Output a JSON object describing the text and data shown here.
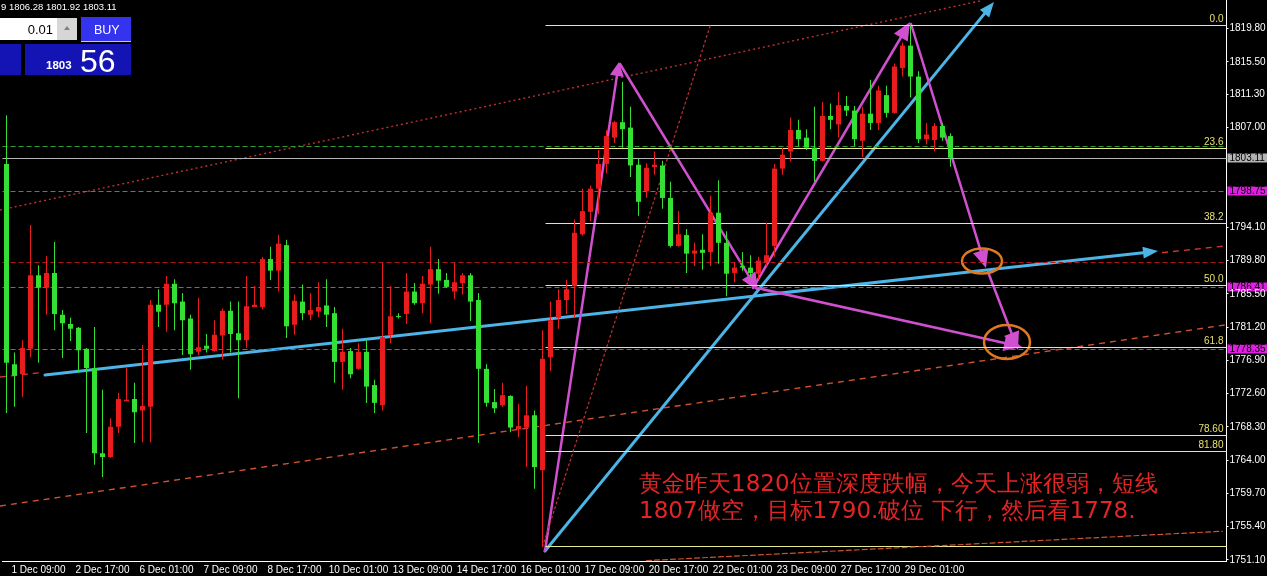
{
  "chart_data": {
    "type": "candlestick",
    "categories": [
      null,
      null,
      null,
      null,
      "1 Dec 09:00",
      null,
      null,
      null,
      null,
      null,
      null,
      null,
      "2 Dec 17:00",
      null,
      null,
      null,
      null,
      null,
      null,
      null,
      "6 Dec 01:00",
      null,
      null,
      null,
      null,
      null,
      null,
      null,
      "7 Dec 09:00",
      null,
      null,
      null,
      null,
      null,
      null,
      null,
      "8 Dec 17:00",
      null,
      null,
      null,
      null,
      null,
      null,
      null,
      "10 Dec 01:00",
      null,
      null,
      null,
      null,
      null,
      null,
      null,
      "13 Dec 09:00",
      null,
      null,
      null,
      null,
      null,
      null,
      null,
      "14 Dec 17:00",
      null,
      null,
      null,
      null,
      null,
      null,
      null,
      "16 Dec 01:00",
      null,
      null,
      null,
      null,
      null,
      null,
      null,
      "17 Dec 09:00",
      null,
      null,
      null,
      null,
      null,
      null,
      null,
      "20 Dec 17:00",
      null,
      null,
      null,
      null,
      null,
      null,
      null,
      "22 Dec 01:00",
      null,
      null,
      null,
      null,
      null,
      null,
      null,
      "23 Dec 09:00",
      null,
      null,
      null,
      null,
      null,
      null,
      null,
      "27 Dec 17:00",
      null,
      null,
      null,
      null,
      null,
      null,
      null,
      "29 Dec 01:00",
      null,
      null,
      null,
      null,
      null,
      null,
      null,
      null,
      null,
      null,
      null,
      null,
      null,
      null,
      null,
      null,
      null,
      null,
      null,
      null,
      null,
      null,
      null,
      null,
      null,
      null,
      null,
      null,
      null,
      null,
      null,
      null,
      null,
      null,
      null,
      null
    ],
    "ohlc": [
      [
        1802.3,
        1808.6,
        1770.1,
        1776.6
      ],
      [
        1776.4,
        1777.9,
        1770.9,
        1774.9
      ],
      [
        1775.1,
        1779.5,
        1772.2,
        1778.5
      ],
      [
        1778.4,
        1794.4,
        1777.3,
        1787.9
      ],
      [
        1787.9,
        1789.2,
        1776.6,
        1786.3
      ],
      [
        1786.3,
        1790.4,
        1782.8,
        1788.2
      ],
      [
        1788.2,
        1792.2,
        1780.8,
        1782.9
      ],
      [
        1782.8,
        1783.4,
        1777.2,
        1781.7
      ],
      [
        1781.6,
        1782.4,
        1779.4,
        1781.0
      ],
      [
        1781.1,
        1781.2,
        1775.3,
        1778.2
      ],
      [
        1778.4,
        1778.5,
        1767.5,
        1775.9
      ],
      [
        1775.9,
        1781.2,
        1763.4,
        1764.9
      ],
      [
        1764.9,
        1773.1,
        1761.8,
        1764.4
      ],
      [
        1764.4,
        1769.4,
        1764.3,
        1768.3
      ],
      [
        1768.3,
        1772.7,
        1767.5,
        1771.9
      ],
      [
        1771.6,
        1776.0,
        1771.6,
        1771.8
      ],
      [
        1771.9,
        1774.0,
        1766.2,
        1770.2
      ],
      [
        1770.4,
        1778.9,
        1766.3,
        1771.0
      ],
      [
        1770.9,
        1784.7,
        1766.3,
        1784.1
      ],
      [
        1784.1,
        1786.1,
        1781.2,
        1783.2
      ],
      [
        1784.1,
        1787.8,
        1780.6,
        1786.8
      ],
      [
        1786.8,
        1787.4,
        1780.8,
        1784.3
      ],
      [
        1784.5,
        1785.6,
        1777.6,
        1782.1
      ],
      [
        1782.3,
        1782.8,
        1775.7,
        1777.7
      ],
      [
        1778.0,
        1785.0,
        1777.6,
        1778.6
      ],
      [
        1778.8,
        1780.3,
        1777.9,
        1778.4
      ],
      [
        1778.1,
        1782.1,
        1778.0,
        1780.2
      ],
      [
        1780.1,
        1783.6,
        1777.0,
        1783.3
      ],
      [
        1783.3,
        1784.5,
        1777.9,
        1780.3
      ],
      [
        1780.4,
        1784.5,
        1772.0,
        1779.5
      ],
      [
        1779.5,
        1787.8,
        1778.5,
        1783.9
      ],
      [
        1783.8,
        1786.5,
        1783.8,
        1784.1
      ],
      [
        1783.8,
        1790.3,
        1783.5,
        1790.0
      ],
      [
        1790.0,
        1791.6,
        1787.3,
        1788.5
      ],
      [
        1788.5,
        1793.1,
        1785.8,
        1792.0
      ],
      [
        1791.8,
        1792.5,
        1779.8,
        1781.3
      ],
      [
        1781.5,
        1785.4,
        1780.2,
        1784.6
      ],
      [
        1784.5,
        1786.7,
        1782.1,
        1783.0
      ],
      [
        1782.8,
        1785.6,
        1782.1,
        1783.4
      ],
      [
        1783.2,
        1787.0,
        1782.5,
        1783.8
      ],
      [
        1784.0,
        1787.4,
        1781.2,
        1782.8
      ],
      [
        1783.0,
        1783.8,
        1774.0,
        1776.7
      ],
      [
        1776.7,
        1781.0,
        1773.1,
        1778.0
      ],
      [
        1778.1,
        1778.5,
        1774.6,
        1775.1
      ],
      [
        1775.8,
        1779.1,
        1775.7,
        1778.0
      ],
      [
        1778.0,
        1779.5,
        1771.4,
        1773.5
      ],
      [
        1773.7,
        1774.4,
        1770.1,
        1771.4
      ],
      [
        1771.1,
        1789.5,
        1770.4,
        1779.9
      ],
      [
        1780.2,
        1786.5,
        1779.1,
        1782.6
      ],
      [
        1782.6,
        1783.0,
        1782.3,
        1782.5
      ],
      [
        1782.9,
        1788.2,
        1781.6,
        1785.8
      ],
      [
        1785.8,
        1786.9,
        1784.1,
        1784.3
      ],
      [
        1784.3,
        1787.8,
        1783.0,
        1786.8
      ],
      [
        1786.7,
        1791.6,
        1781.7,
        1788.7
      ],
      [
        1788.7,
        1790.0,
        1785.5,
        1787.2
      ],
      [
        1787.3,
        1788.2,
        1786.3,
        1786.4
      ],
      [
        1785.8,
        1789.5,
        1784.8,
        1787.0
      ],
      [
        1786.9,
        1788.2,
        1785.4,
        1787.9
      ],
      [
        1787.9,
        1788.2,
        1782.0,
        1784.5
      ],
      [
        1784.7,
        1785.6,
        1766.2,
        1775.8
      ],
      [
        1775.8,
        1776.4,
        1770.9,
        1771.4
      ],
      [
        1771.5,
        1773.2,
        1770.1,
        1770.7
      ],
      [
        1771.1,
        1774.0,
        1770.9,
        1772.4
      ],
      [
        1772.3,
        1772.4,
        1767.6,
        1768.2
      ],
      [
        1768.0,
        1771.3,
        1767.0,
        1768.4
      ],
      [
        1768.2,
        1773.6,
        1763.1,
        1769.8
      ],
      [
        1769.8,
        1770.4,
        1760.3,
        1763.1
      ],
      [
        1762.7,
        1780.8,
        1752.8,
        1777.1
      ],
      [
        1777.3,
        1784.5,
        1775.5,
        1782.1
      ],
      [
        1782.4,
        1786.1,
        1781.0,
        1784.7
      ],
      [
        1784.7,
        1787.3,
        1782.9,
        1786.1
      ],
      [
        1786.5,
        1795.1,
        1782.4,
        1793.4
      ],
      [
        1793.2,
        1799.1,
        1793.0,
        1796.2
      ],
      [
        1796.1,
        1799.5,
        1794.9,
        1799.1
      ],
      [
        1799.1,
        1804.1,
        1795.8,
        1802.3
      ],
      [
        1802.3,
        1806.7,
        1801.1,
        1805.9
      ],
      [
        1805.7,
        1807.9,
        1805.0,
        1807.7
      ],
      [
        1807.7,
        1812.9,
        1804.4,
        1806.8
      ],
      [
        1807.0,
        1809.7,
        1800.6,
        1802.1
      ],
      [
        1802.2,
        1803.0,
        1795.6,
        1797.4
      ],
      [
        1798.8,
        1802.4,
        1797.9,
        1801.8
      ],
      [
        1801.9,
        1803.9,
        1800.9,
        1802.2
      ],
      [
        1802.1,
        1802.7,
        1796.5,
        1797.9
      ],
      [
        1797.9,
        1800.0,
        1791.5,
        1791.7
      ],
      [
        1791.7,
        1796.2,
        1791.6,
        1793.2
      ],
      [
        1793.1,
        1793.9,
        1788.2,
        1790.7
      ],
      [
        1790.7,
        1792.1,
        1789.1,
        1791.1
      ],
      [
        1791.2,
        1793.2,
        1788.6,
        1790.8
      ],
      [
        1790.9,
        1798.2,
        1789.1,
        1796.0
      ],
      [
        1796.0,
        1800.2,
        1789.4,
        1792.1
      ],
      [
        1792.1,
        1793.6,
        1785.2,
        1788.1
      ],
      [
        1788.2,
        1789.6,
        1787.0,
        1788.9
      ],
      [
        1789.1,
        1790.9,
        1788.5,
        1788.9
      ],
      [
        1788.9,
        1790.5,
        1787.7,
        1788.2
      ],
      [
        1788.1,
        1790.3,
        1787.4,
        1789.8
      ],
      [
        1789.6,
        1794.7,
        1789.1,
        1790.5
      ],
      [
        1791.7,
        1802.3,
        1790.3,
        1801.7
      ],
      [
        1801.7,
        1804.4,
        1800.9,
        1803.5
      ],
      [
        1803.9,
        1808.3,
        1802.6,
        1806.7
      ],
      [
        1806.7,
        1808.0,
        1804.6,
        1805.5
      ],
      [
        1805.7,
        1806.8,
        1804.1,
        1804.4
      ],
      [
        1804.4,
        1809.7,
        1800.0,
        1802.7
      ],
      [
        1802.7,
        1810.3,
        1802.6,
        1808.5
      ],
      [
        1808.5,
        1810.1,
        1806.8,
        1808.0
      ],
      [
        1807.4,
        1811.6,
        1805.7,
        1809.9
      ],
      [
        1809.8,
        1811.1,
        1808.5,
        1809.2
      ],
      [
        1809.2,
        1809.8,
        1804.6,
        1805.5
      ],
      [
        1805.3,
        1809.7,
        1803.2,
        1808.8
      ],
      [
        1808.8,
        1813.2,
        1806.7,
        1807.6
      ],
      [
        1807.6,
        1812.4,
        1806.7,
        1811.8
      ],
      [
        1811.2,
        1812.4,
        1808.3,
        1808.9
      ],
      [
        1808.9,
        1815.3,
        1808.8,
        1814.9
      ],
      [
        1814.7,
        1818.0,
        1813.6,
        1817.6
      ],
      [
        1817.6,
        1820.3,
        1810.9,
        1813.6
      ],
      [
        1813.6,
        1814.3,
        1805.0,
        1805.5
      ],
      [
        1805.5,
        1807.6,
        1804.8,
        1806.1
      ],
      [
        1805.4,
        1807.6,
        1803.9,
        1807.2
      ],
      [
        1807.2,
        1807.6,
        1805.3,
        1805.7
      ],
      [
        1805.9,
        1806.28,
        1801.92,
        1803.11
      ],
      null,
      null,
      null,
      null,
      null,
      null,
      null,
      null,
      null,
      null,
      null,
      null,
      null,
      null,
      null,
      null,
      null,
      null,
      null,
      null,
      null,
      null,
      null,
      null,
      null,
      null,
      null,
      null,
      null,
      null,
      null,
      null,
      null,
      null
    ],
    "colors": [
      "#33e033",
      "#33e033",
      "#e81c1c",
      "#e81c1c",
      "#33e033",
      "#e81c1c",
      "#33e033",
      "#33e033",
      "#33e033",
      "#33e033",
      "#33e033",
      "#33e033",
      "#33e033",
      "#e81c1c",
      "#e81c1c",
      "#e81c1c",
      "#33e033",
      "#e81c1c",
      "#e81c1c",
      "#33e033",
      "#e81c1c",
      "#33e033",
      "#33e033",
      "#33e033",
      "#e81c1c",
      "#33e033",
      "#e81c1c",
      "#e81c1c",
      "#33e033",
      "#33e033",
      "#e81c1c",
      "#e81c1c",
      "#e81c1c",
      "#33e033",
      "#e81c1c",
      "#33e033",
      "#e81c1c",
      "#33e033",
      "#e81c1c",
      "#e81c1c",
      "#33e033",
      "#33e033",
      "#e81c1c",
      "#33e033",
      "#e81c1c",
      "#33e033",
      "#33e033",
      "#e81c1c",
      "#e81c1c",
      "#33e033",
      "#e81c1c",
      "#33e033",
      "#e81c1c",
      "#e81c1c",
      "#33e033",
      "#33e033",
      "#e81c1c",
      "#e81c1c",
      "#33e033",
      "#33e033",
      "#33e033",
      "#33e033",
      "#e81c1c",
      "#33e033",
      "#e81c1c",
      "#e81c1c",
      "#33e033",
      "#e81c1c",
      "#e81c1c",
      "#e81c1c",
      "#e81c1c",
      "#e81c1c",
      "#e81c1c",
      "#e81c1c",
      "#e81c1c",
      "#e81c1c",
      "#e81c1c",
      "#33e033",
      "#33e033",
      "#33e033",
      "#e81c1c",
      "#e81c1c",
      "#33e033",
      "#33e033",
      "#e81c1c",
      "#33e033",
      "#e81c1c",
      "#33e033",
      "#e81c1c",
      "#33e033",
      "#33e033",
      "#e81c1c",
      "#33e033",
      "#33e033",
      "#e81c1c",
      "#e81c1c",
      "#e81c1c",
      "#e81c1c",
      "#e81c1c",
      "#33e033",
      "#33e033",
      "#33e033",
      "#e81c1c",
      "#33e033",
      "#e81c1c",
      "#33e033",
      "#33e033",
      "#e81c1c",
      "#33e033",
      "#e81c1c",
      "#33e033",
      "#e81c1c",
      "#e81c1c",
      "#33e033",
      "#33e033",
      "#e81c1c",
      "#e81c1c",
      "#33e033",
      "#33e033",
      null,
      null,
      null,
      null,
      null,
      null,
      null,
      null,
      null,
      null,
      null,
      null,
      null,
      null,
      null,
      null,
      null,
      null,
      null,
      null,
      null,
      null,
      null,
      null,
      null,
      null,
      null,
      null,
      null,
      null,
      null,
      null,
      null,
      null
    ],
    "series": [
      {
        "type": "line",
        "color": "#c03030",
        "line_style": "dotted",
        "values": [
          null,
          null,
          null,
          null,
          null,
          null,
          null,
          null,
          null,
          null,
          null,
          null,
          null,
          null,
          null,
          null,
          null,
          null,
          null,
          null,
          null,
          null,
          null,
          null,
          null,
          null,
          null,
          null,
          null,
          null,
          null,
          null,
          null,
          null,
          null,
          null,
          null,
          null,
          null,
          null,
          null,
          null,
          null,
          null,
          null,
          null,
          null,
          null,
          null,
          null,
          null,
          null,
          null,
          null,
          null,
          null,
          null,
          null,
          null,
          null,
          null,
          null,
          null,
          null,
          null,
          null,
          null,
          1752.8,
          null,
          null,
          null,
          null,
          null,
          null,
          null,
          null,
          null,
          null,
          null,
          null,
          null,
          null,
          null,
          null,
          null,
          null,
          null,
          null,
          1820.3,
          null,
          null,
          null,
          null,
          null,
          null,
          null,
          null,
          null,
          null,
          null,
          null,
          null,
          null,
          null,
          null,
          null,
          null,
          null,
          null,
          null,
          null,
          null,
          null,
          null,
          null,
          null,
          null,
          null,
          null,
          null,
          null,
          null,
          null,
          null,
          null,
          null,
          null,
          null,
          null,
          null,
          null,
          null,
          null,
          null,
          null,
          null,
          null,
          null,
          null,
          null,
          null,
          null,
          null,
          null,
          null,
          null,
          null,
          null,
          null,
          null,
          null,
          null,
          null
        ]
      },
      {
        "type": "line",
        "color": "#d05030",
        "line_style": "dashed",
        "values": [
          null,
          null,
          null,
          null,
          null,
          null,
          null,
          null,
          null,
          null,
          null,
          null,
          null,
          null,
          null,
          null,
          null,
          null,
          null,
          null,
          null,
          null,
          null,
          null,
          null,
          null,
          null,
          null,
          null,
          null,
          null,
          null,
          null,
          null,
          null,
          null,
          null,
          null,
          null,
          null,
          null,
          null,
          null,
          null,
          null,
          null,
          null,
          null,
          null,
          null,
          null,
          null,
          null,
          null,
          null,
          null,
          null,
          null,
          null,
          null,
          null,
          null,
          null,
          null,
          null,
          null,
          null,
          null,
          null,
          null,
          null,
          null,
          null,
          null,
          null,
          null,
          null,
          null,
          null,
          null,
          1751.0,
          null,
          null,
          null,
          null,
          null,
          null,
          null,
          null,
          null,
          null,
          null,
          null,
          null,
          null,
          null,
          null,
          null,
          null,
          null,
          null,
          null,
          null,
          null,
          null,
          null,
          null,
          null,
          null,
          null,
          null,
          null,
          null,
          null,
          null,
          null,
          null,
          null,
          null,
          null,
          null,
          null,
          null,
          null,
          null,
          null,
          null,
          null,
          null,
          null,
          null,
          null,
          null,
          null,
          null,
          null,
          null,
          null,
          null,
          null,
          null,
          null,
          null,
          null,
          null,
          null,
          null,
          null,
          null,
          null,
          null,
          null,
          1754.8
        ]
      }
    ],
    "ylim": [
      1750.9,
      1823.5
    ],
    "yticks": [
      {
        "value": 1751.1,
        "label": "1751.10"
      },
      {
        "value": 1755.4,
        "label": "1755.40"
      },
      {
        "value": 1759.7,
        "label": "1759.70"
      },
      {
        "value": 1764,
        "label": "1764.00"
      },
      {
        "value": 1768.3,
        "label": "1768.30"
      },
      {
        "value": 1772.6,
        "label": "1772.60"
      },
      {
        "value": 1776.9,
        "label": "1776.90"
      },
      {
        "value": 1781.2,
        "label": "1781.20"
      },
      {
        "value": 1785.5,
        "label": "1785.50"
      },
      {
        "value": 1789.8,
        "label": "1789.80"
      },
      {
        "value": 1794.1,
        "label": "1794.10"
      },
      {
        "value": 1807,
        "label": "1807.00"
      },
      {
        "value": 1811.3,
        "label": "1811.30"
      },
      {
        "value": 1815.5,
        "label": "1815.50"
      },
      {
        "value": 1819.8,
        "label": "1819.80"
      }
    ],
    "ref_lines": [
      {
        "axis": "y",
        "value": 1820.3,
        "color": "#e8e890"
      },
      {
        "axis": "y",
        "value": 1804.4,
        "color": "#e8e890"
      },
      {
        "axis": "y",
        "value": 1794.6,
        "color": "#e8e890"
      },
      {
        "axis": "y",
        "value": 1786.6,
        "color": "#e8e890"
      },
      {
        "axis": "y",
        "value": 1778.6,
        "color": "#e8e890"
      },
      {
        "axis": "y",
        "value": 1767.3,
        "color": "#e8e890"
      },
      {
        "axis": "y",
        "value": 1765.2,
        "color": "#e8e890"
      },
      {
        "axis": "y",
        "value": 1752.9,
        "color": "#e8e890"
      },
      {
        "axis": "y",
        "value": 1804.6,
        "color": "#2e9e2e",
        "line_style": "dashed"
      },
      {
        "axis": "y",
        "value": 1789.6,
        "color": "#b01818",
        "line_style": "dashed"
      },
      {
        "axis": "y",
        "value": 1803.11,
        "label": "1803.11",
        "color": "#b4b4b4"
      },
      {
        "axis": "y",
        "value": 1798.75,
        "label": "1798.75",
        "color": "#e020e0",
        "line_style": "dashed"
      },
      {
        "axis": "y",
        "value": 1786.41,
        "label": "1786.41",
        "color": "#e020e0",
        "line_style": "dashed"
      },
      {
        "axis": "y",
        "value": 1778.35,
        "label": "1778.35",
        "color": "#e020e0",
        "line_style": "dashed"
      }
    ],
    "annotations": [
      "9 1806.28 1801.92 1803.11",
      "0.01",
      "BUY",
      "1803",
      "56",
      "黄金昨天1820位置深度跌幅，今天上涨很弱，短线\n1807做空，目标1790.破位 下行，然后看1778.",
      {
        "text": "0.0",
        "y": 1820.3
      },
      {
        "text": "23.6",
        "y": 1804.4
      },
      {
        "text": "38.2",
        "y": 1794.6
      },
      {
        "text": "50.0",
        "y": 1786.6
      },
      {
        "text": "61.8",
        "y": 1778.6
      },
      {
        "text": "78.60",
        "y": 1767.3
      },
      {
        "text": "81.80",
        "y": 1765.2
      }
    ]
  }
}
